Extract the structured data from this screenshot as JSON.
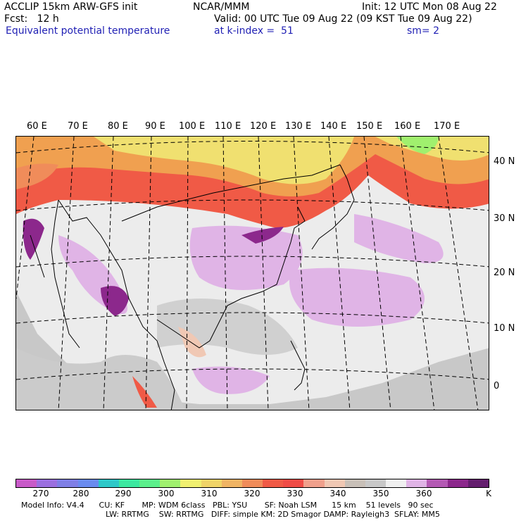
{
  "header": {
    "line1_left": "ACCLIP 15km ARW-GFS init",
    "line1_mid": "NCAR/MMM",
    "line1_right": "Init: 12 UTC Mon 08 Aug 22",
    "line2_left": "Fcst:   12 h",
    "line2_right": "Valid: 00 UTC Tue 09 Aug 22 (09 KST Tue 09 Aug 22)",
    "line3_left": "Equivalent potential temperature",
    "line3_mid": "at k-index =  51",
    "line3_right": "sm= 2"
  },
  "longitude_labels": [
    "60 E",
    "70 E",
    "80 E",
    "90 E",
    "100 E",
    "110 E",
    "120 E",
    "130 E",
    "140 E",
    "150 E",
    "160 E",
    "170 E"
  ],
  "latitude_labels": [
    "40 N",
    "30 N",
    "20 N",
    "10 N",
    "0"
  ],
  "colorbar": {
    "colors": [
      "#c85ac8",
      "#9b6fe0",
      "#7f7fe6",
      "#6a8cf0",
      "#2ec8c8",
      "#3ce8a0",
      "#5cf08c",
      "#a0f06e",
      "#f0f070",
      "#f0d468",
      "#f0b464",
      "#f08c5a",
      "#f05a46",
      "#f04c46",
      "#f0a08c",
      "#f0c8b4",
      "#c8c0b8",
      "#c8c8c8",
      "#f0f0f0",
      "#e0b4e6",
      "#b45ab4",
      "#8c288c",
      "#641e6e"
    ],
    "ticks": [
      "270",
      "280",
      "290",
      "300",
      "310",
      "320",
      "330",
      "340",
      "350",
      "360"
    ],
    "unit": "K"
  },
  "footer": {
    "line1": "Model Info: V4.4      CU: KF       MP: WDM 6class   PBL: YSU       SF: Noah LSM      15 km    51 levels   90 sec",
    "line2": "LW: RRTMG    SW: RRTMG   DIFF: simple KM: 2D Smagor DAMP: Rayleigh3  SFLAY: MM5"
  }
}
